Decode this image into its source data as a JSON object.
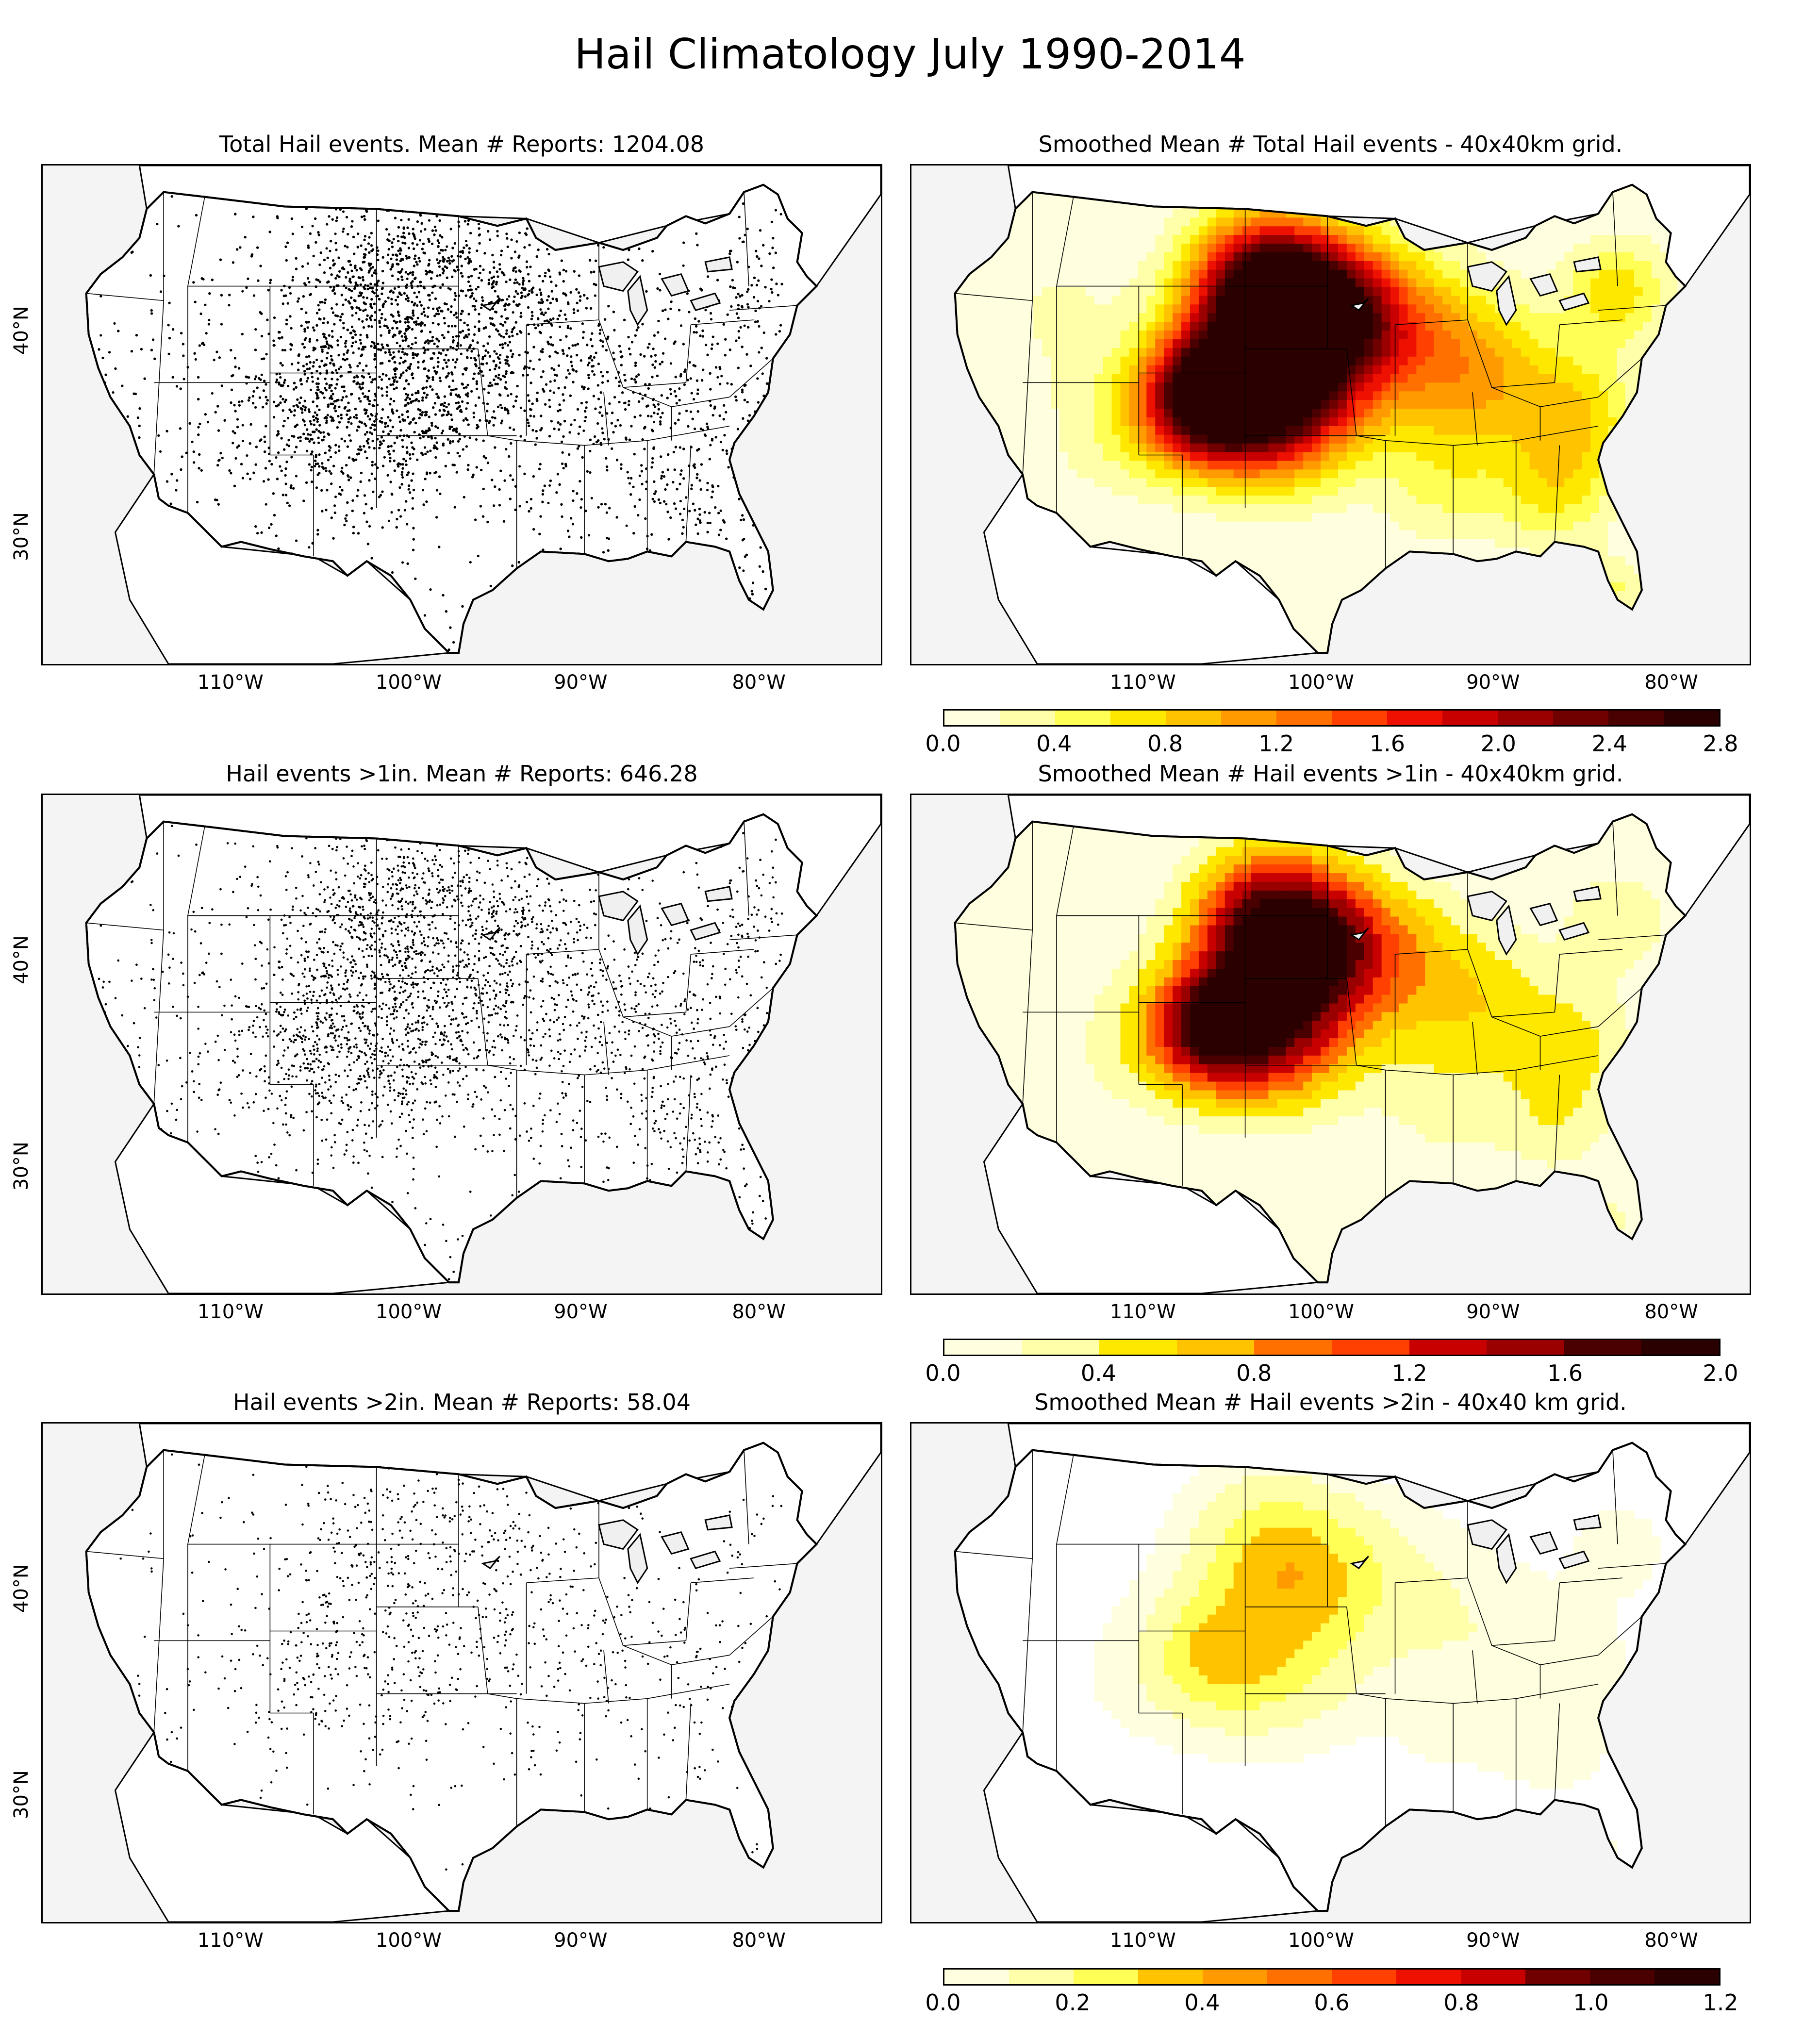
{
  "title": "Hail Climatology July 1990-2014",
  "axes": {
    "lon_ticks": [
      "110°W",
      "100°W",
      "90°W",
      "80°W"
    ],
    "lat_ticks": [
      "40°N",
      "30°N"
    ]
  },
  "rows": [
    {
      "left_title": "Total Hail events. Mean # Reports: 1204.08",
      "right_title": "Smoothed Mean # Total Hail events - 40x40km grid.",
      "density": 1.0,
      "colorbar": {
        "ticks": [
          "0.0",
          "0.4",
          "0.8",
          "1.2",
          "1.6",
          "2.0",
          "2.4",
          "2.8"
        ],
        "min": 0.0,
        "max": 2.8,
        "levels": 14
      }
    },
    {
      "left_title": "Hail events >1in. Mean # Reports: 646.28",
      "right_title": "Smoothed Mean # Hail events >1in - 40x40km grid.",
      "density": 0.6,
      "colorbar": {
        "ticks": [
          "0.0",
          "0.4",
          "0.8",
          "1.2",
          "1.6",
          "2.0"
        ],
        "min": 0.0,
        "max": 2.0,
        "levels": 10
      }
    },
    {
      "left_title": "Hail events >2in. Mean # Reports: 58.04",
      "right_title": "Smoothed Mean # Hail events >2in - 40x40 km grid.",
      "density": 0.12,
      "colorbar": {
        "ticks": [
          "0.0",
          "0.2",
          "0.4",
          "0.6",
          "0.8",
          "1.0",
          "1.2"
        ],
        "min": 0.0,
        "max": 1.2,
        "levels": 12
      }
    }
  ],
  "colormap": [
    "#ffffe0",
    "#ffffaa",
    "#ffff55",
    "#ffe800",
    "#ffc300",
    "#ff9a00",
    "#ff7000",
    "#ff4000",
    "#ee1000",
    "#c80000",
    "#9a0000",
    "#700000",
    "#4a0000",
    "#2a0000"
  ],
  "legend": {
    "colorbar_label": ""
  }
}
